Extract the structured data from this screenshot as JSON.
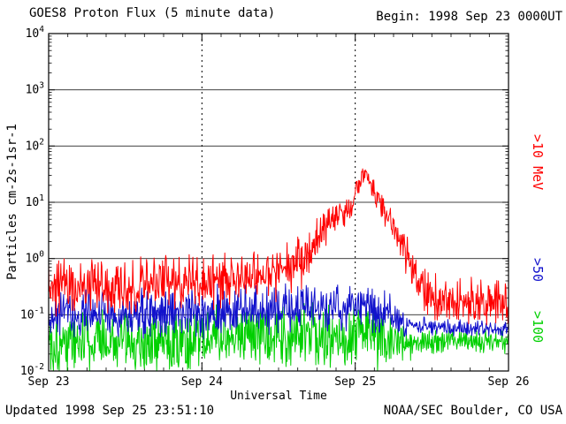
{
  "header": {
    "begin_label": "Begin: 1998 Sep 23 0000UT"
  },
  "footer": {
    "updated": "Updated 1998 Sep 25 23:51:10",
    "source": "NOAA/SEC Boulder, CO USA"
  },
  "chart_data": {
    "type": "line",
    "title": "GOES8 Proton Flux (5 minute data)",
    "xlabel": "Universal Time",
    "ylabel": "Particles cm-2s-1sr-1",
    "x_unit": "day of September 1998 (UT)",
    "xlim": [
      23,
      26
    ],
    "x_ticks": [
      {
        "value": 23,
        "label": "Sep 23"
      },
      {
        "value": 24,
        "label": "Sep 24"
      },
      {
        "value": 25,
        "label": "Sep 25"
      },
      {
        "value": 26,
        "label": "Sep 26"
      }
    ],
    "y_scale": "log10",
    "ylim": [
      0.01,
      10000
    ],
    "y_tick_exponents": [
      -2,
      -1,
      0,
      1,
      2,
      3,
      4
    ],
    "grid": {
      "horizontal": "solid line per decade",
      "vertical": "dashed line at each day boundary"
    },
    "legend_position": "right-rotated",
    "series": [
      {
        "name": "protons >100 MeV",
        "label": ">100",
        "color": "#00d000",
        "cadence_minutes": 5,
        "trend_log10": [
          [
            23,
            -1.5
          ],
          [
            23.5,
            -1.45
          ],
          [
            24,
            -1.42
          ],
          [
            24.5,
            -1.38
          ],
          [
            25,
            -1.38
          ],
          [
            25.2,
            -1.42
          ],
          [
            25.35,
            -1.48
          ],
          [
            26,
            -1.48
          ]
        ],
        "noise_log10": [
          [
            23,
            0.36
          ],
          [
            25.2,
            0.36
          ],
          [
            25.4,
            0.14
          ],
          [
            26,
            0.13
          ]
        ]
      },
      {
        "name": "protons >50 MeV",
        "label": ">50",
        "color": "#1111cc",
        "cadence_minutes": 5,
        "trend_log10": [
          [
            23,
            -1.02
          ],
          [
            23.5,
            -1.0
          ],
          [
            24,
            -0.95
          ],
          [
            24.5,
            -0.9
          ],
          [
            24.9,
            -0.85
          ],
          [
            25.05,
            -0.85
          ],
          [
            25.2,
            -0.95
          ],
          [
            25.3,
            -1.15
          ],
          [
            25.5,
            -1.22
          ],
          [
            26,
            -1.25
          ]
        ],
        "noise_log10": [
          [
            23,
            0.26
          ],
          [
            25.2,
            0.26
          ],
          [
            25.35,
            0.1
          ],
          [
            26,
            0.09
          ]
        ]
      },
      {
        "name": "protons >10 MeV",
        "label": ">10 MeV",
        "color": "#ff0000",
        "cadence_minutes": 5,
        "trend_log10": [
          [
            23,
            -0.5
          ],
          [
            23.25,
            -0.55
          ],
          [
            23.5,
            -0.5
          ],
          [
            23.75,
            -0.45
          ],
          [
            24,
            -0.42
          ],
          [
            24.25,
            -0.35
          ],
          [
            24.5,
            -0.25
          ],
          [
            24.65,
            -0.1
          ],
          [
            24.75,
            0.35
          ],
          [
            24.82,
            0.6
          ],
          [
            24.9,
            0.8
          ],
          [
            24.97,
            0.9
          ],
          [
            25.02,
            1.3
          ],
          [
            25.06,
            1.58
          ],
          [
            25.1,
            1.35
          ],
          [
            25.15,
            1.05
          ],
          [
            25.22,
            0.7
          ],
          [
            25.3,
            0.25
          ],
          [
            25.38,
            -0.2
          ],
          [
            25.48,
            -0.6
          ],
          [
            25.6,
            -0.75
          ],
          [
            25.8,
            -0.8
          ],
          [
            26,
            -0.8
          ]
        ],
        "noise_log10": [
          [
            23,
            0.3
          ],
          [
            24.6,
            0.3
          ],
          [
            24.75,
            0.22
          ],
          [
            24.95,
            0.15
          ],
          [
            25.0,
            0.1
          ],
          [
            25.15,
            0.12
          ],
          [
            25.3,
            0.18
          ],
          [
            25.45,
            0.25
          ],
          [
            26,
            0.25
          ]
        ]
      }
    ],
    "event_note_values": {
      "peak_gt10MeV_flux_approx": 45,
      "peak_time_approx": "1998 Sep 25 ~0100-0200 UT"
    }
  }
}
